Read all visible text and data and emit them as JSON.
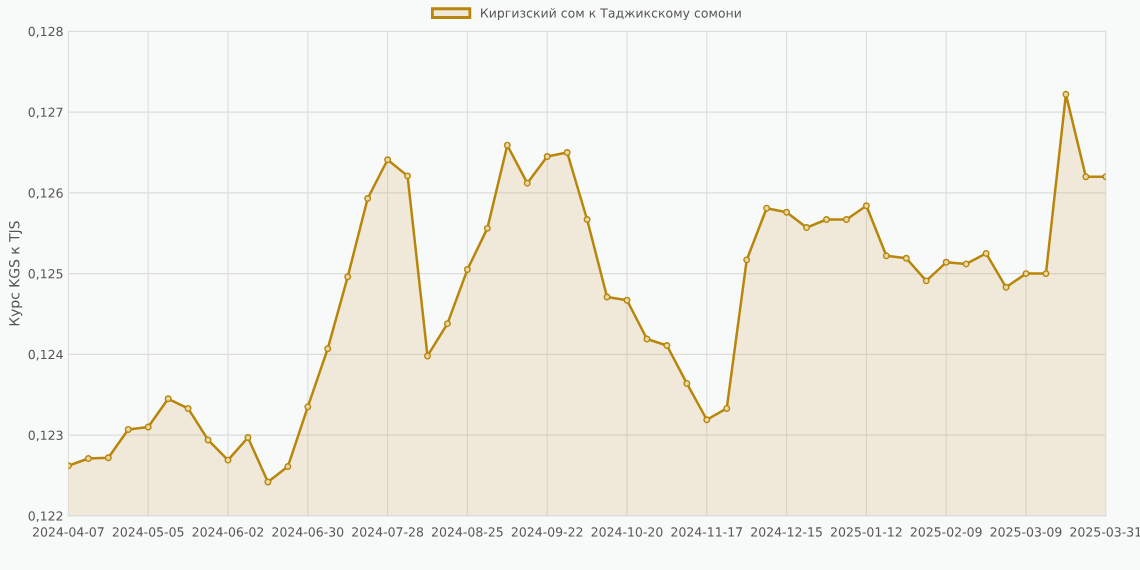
{
  "chart_data": {
    "type": "area",
    "ylabel": "Курс KGS к TJS",
    "categories": [
      "2024-04-07",
      null,
      null,
      null,
      "2024-05-05",
      null,
      null,
      null,
      "2024-06-02",
      null,
      null,
      null,
      "2024-06-30",
      null,
      null,
      null,
      "2024-07-28",
      null,
      null,
      null,
      "2024-08-25",
      null,
      null,
      null,
      "2024-09-22",
      null,
      null,
      null,
      "2024-10-20",
      null,
      null,
      null,
      "2024-11-17",
      null,
      null,
      null,
      "2024-12-15",
      null,
      null,
      null,
      "2025-01-12",
      null,
      null,
      null,
      "2025-02-09",
      null,
      null,
      null,
      "2025-03-09",
      null,
      null,
      null,
      "2025-03-31"
    ],
    "series": [
      {
        "name": "Киргизский сом к Таджикскому сомони",
        "color": "#b8860b",
        "values": [
          0.12262,
          0.12271,
          0.12272,
          0.12307,
          0.1231,
          0.12345,
          0.12333,
          0.12294,
          0.12269,
          0.12297,
          0.12242,
          0.12261,
          0.12335,
          0.12407,
          0.12496,
          0.12593,
          0.12641,
          0.12621,
          0.12398,
          0.12438,
          0.12505,
          0.12556,
          0.12659,
          0.12612,
          0.12645,
          0.1265,
          0.12567,
          0.12471,
          0.12467,
          0.12419,
          0.12411,
          0.12364,
          0.12319,
          0.12333,
          0.12517,
          0.12581,
          0.12576,
          0.12557,
          0.12567,
          0.12567,
          0.12584,
          0.12522,
          0.12519,
          0.12491,
          0.12514,
          0.12512,
          0.12525,
          0.12483,
          0.125,
          0.125,
          0.12722,
          0.1262,
          0.1262
        ]
      }
    ],
    "ylim": [
      0.122,
      0.128
    ],
    "yticks": [
      {
        "value": 0.122,
        "label": "0,122"
      },
      {
        "value": 0.123,
        "label": "0,123"
      },
      {
        "value": 0.124,
        "label": "0,124"
      },
      {
        "value": 0.125,
        "label": "0,125"
      },
      {
        "value": 0.126,
        "label": "0,126"
      },
      {
        "value": 0.127,
        "label": "0,127"
      },
      {
        "value": 0.128,
        "label": "0,128"
      }
    ],
    "grid": true,
    "legend": "top",
    "marker": "circle",
    "line_style": "solid"
  }
}
